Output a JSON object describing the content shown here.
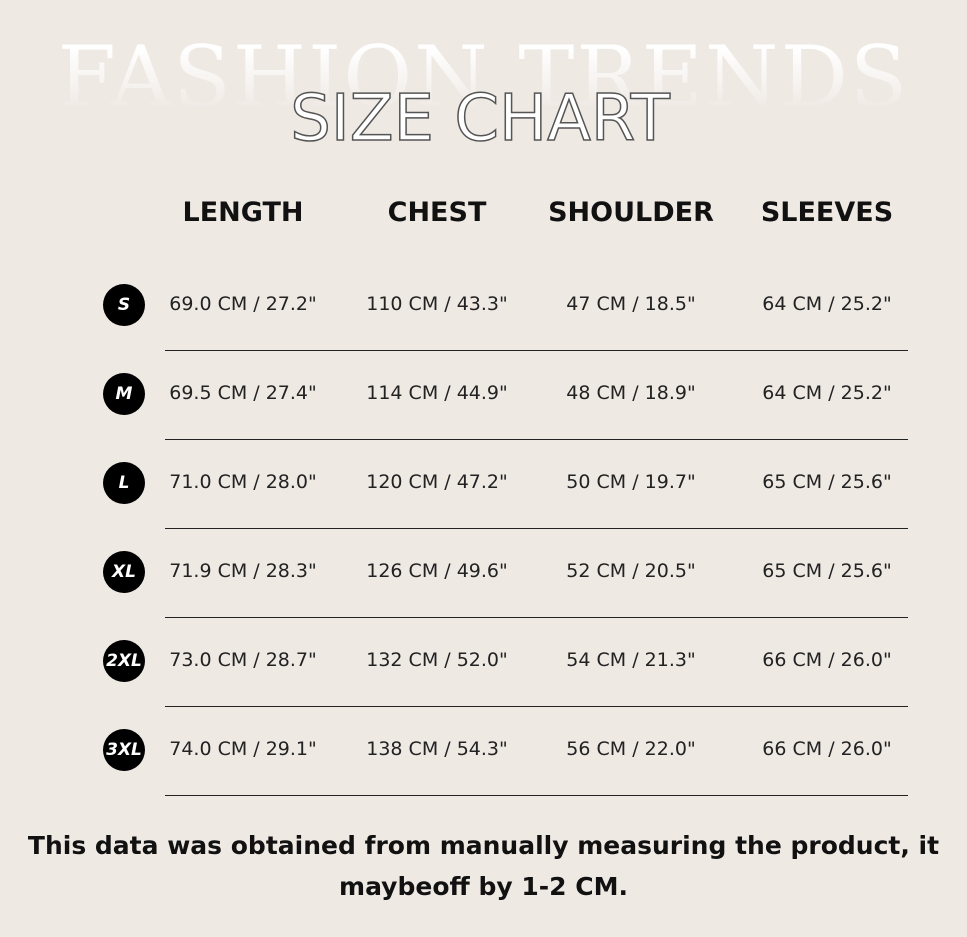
{
  "header": {
    "background_title": "FASHION TRENDS",
    "title": "SIZE CHART"
  },
  "table": {
    "columns": [
      "LENGTH",
      "CHEST",
      "SHOULDER",
      "SLEEVES"
    ],
    "rows": [
      {
        "size": "S",
        "cells": [
          "69.0 CM / 27.2\"",
          "110 CM / 43.3\"",
          "47 CM / 18.5\"",
          "64 CM / 25.2\""
        ]
      },
      {
        "size": "M",
        "cells": [
          "69.5 CM / 27.4\"",
          "114 CM / 44.9\"",
          "48 CM / 18.9\"",
          "64 CM / 25.2\""
        ]
      },
      {
        "size": "L",
        "cells": [
          "71.0 CM / 28.0\"",
          "120 CM / 47.2\"",
          "50 CM / 19.7\"",
          "65 CM / 25.6\""
        ]
      },
      {
        "size": "XL",
        "cells": [
          "71.9 CM / 28.3\"",
          "126 CM / 49.6\"",
          "52 CM / 20.5\"",
          "65 CM / 25.6\""
        ]
      },
      {
        "size": "2XL",
        "cells": [
          "73.0 CM / 28.7\"",
          "132 CM / 52.0\"",
          "54 CM / 21.3\"",
          "66 CM / 26.0\""
        ]
      },
      {
        "size": "3XL",
        "cells": [
          "74.0 CM / 29.1\"",
          "138 CM / 54.3\"",
          "56 CM / 22.0\"",
          "66 CM / 26.0\""
        ]
      }
    ]
  },
  "footnote": {
    "lines": [
      "This data was obtained from manually measuring the product, it",
      "maybeoff by 1-2 CM."
    ]
  }
}
